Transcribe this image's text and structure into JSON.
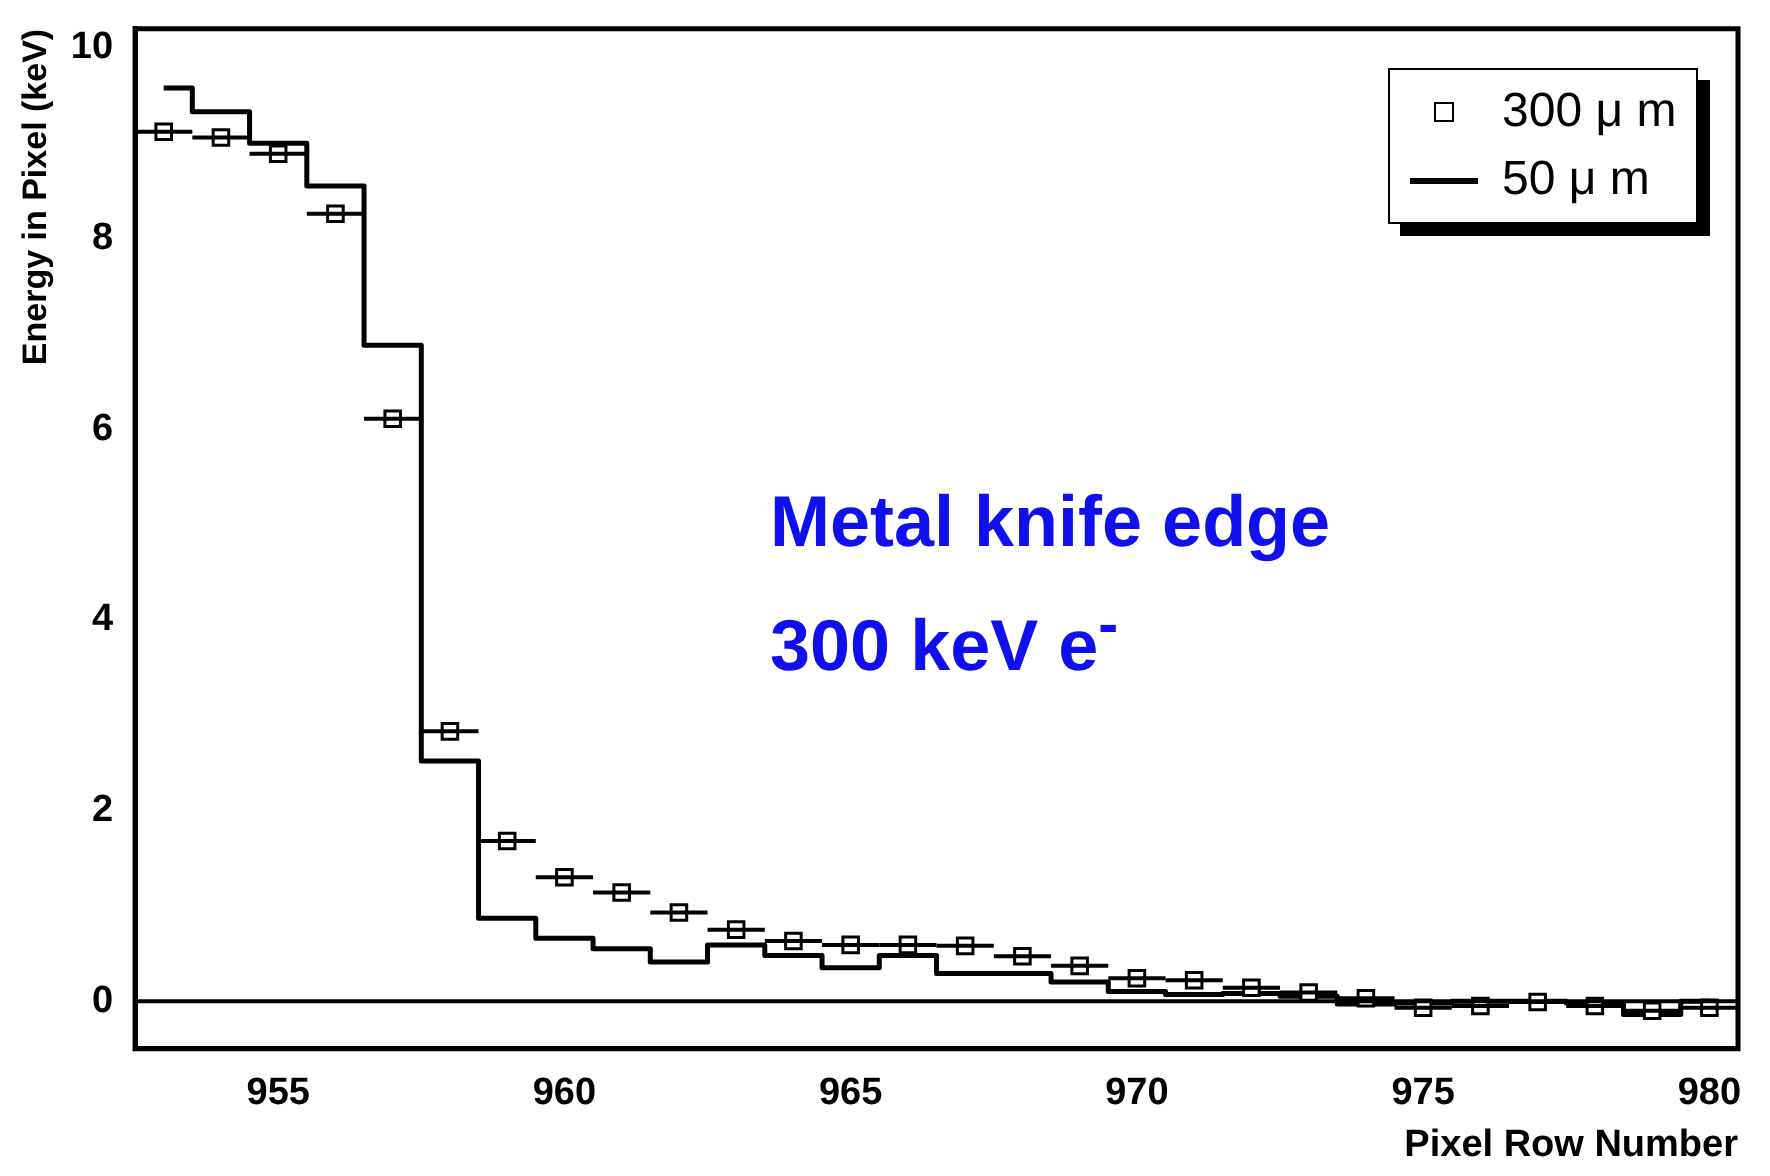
{
  "chart_data": {
    "type": "step",
    "xlabel": "Pixel Row Number",
    "ylabel": "Energy in Pixel (keV)",
    "annotations": [
      "Metal knife edge",
      "300 keV e$^{-}$"
    ],
    "x": [
      953,
      954,
      955,
      956,
      957,
      958,
      959,
      960,
      961,
      962,
      963,
      964,
      965,
      966,
      967,
      968,
      969,
      970,
      971,
      972,
      973,
      974,
      975,
      976,
      977,
      978,
      979,
      980
    ],
    "series": [
      {
        "name": "300 μ m",
        "type": "scatter",
        "marker": "square",
        "color": "#000000",
        "values": [
          9.12,
          9.06,
          8.89,
          8.26,
          6.11,
          2.83,
          1.68,
          1.3,
          1.14,
          0.93,
          0.75,
          0.63,
          0.59,
          0.59,
          0.58,
          0.47,
          0.37,
          0.24,
          0.22,
          0.14,
          0.09,
          0.03,
          -0.07,
          -0.05,
          -0.01,
          -0.05,
          -0.1,
          -0.07
        ],
        "xerrors": [
          0.5,
          0.5,
          0.5,
          0.5,
          0.5,
          0.5,
          0.5,
          0.5,
          0.5,
          0.5,
          0.5,
          0.5,
          0.5,
          0.5,
          0.5,
          0.5,
          0.5,
          0.5,
          0.5,
          0.5,
          0.5,
          0.5,
          0.5,
          0.5,
          0.5,
          0.5,
          0.5,
          0.5
        ]
      },
      {
        "name": "50 μ m",
        "color": "#000000",
        "values": [
          9.58,
          9.33,
          9.0,
          8.55,
          6.88,
          2.52,
          0.87,
          0.66,
          0.55,
          0.41,
          0.59,
          0.48,
          0.35,
          0.48,
          0.29,
          0.29,
          0.2,
          0.1,
          0.07,
          0.08,
          0.05,
          -0.03,
          -0.02,
          0,
          0,
          -0.02,
          -0.14,
          0
        ]
      }
    ],
    "xlim": [
      952.5,
      980.5
    ],
    "xticks": [
      955,
      960,
      965,
      970,
      975,
      980
    ],
    "ylim": [
      -0.5,
      10.2
    ],
    "yticks": [
      0,
      2,
      4,
      6,
      8,
      10
    ],
    "ref_lines": [
      {
        "axis": "y",
        "value": 0,
        "color": "#000000"
      }
    ],
    "legend": "top right"
  }
}
